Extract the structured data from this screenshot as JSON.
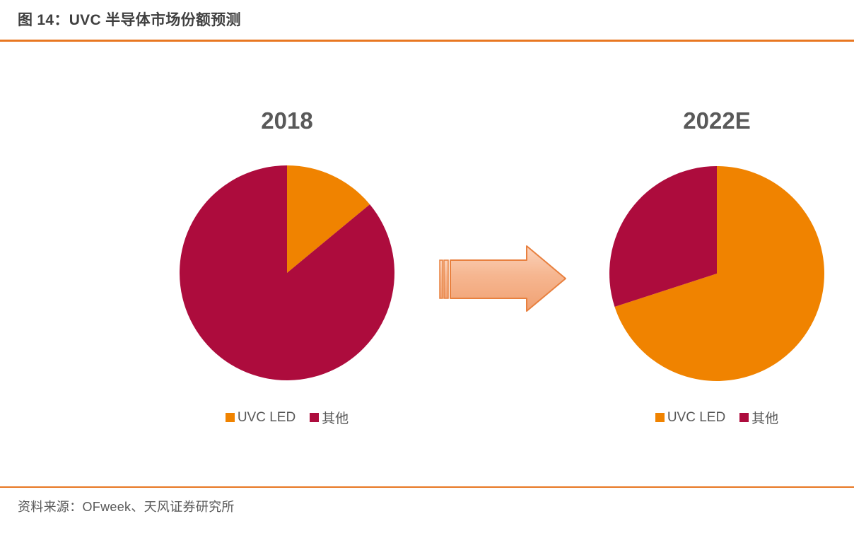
{
  "figure": {
    "title": "图 14：UVC 半导体市场份额预测",
    "source": "资料来源：OFweek、天风证券研究所"
  },
  "legend": {
    "items": [
      {
        "label": "UVC LED",
        "color": "#F08300"
      },
      {
        "label": "其他",
        "color": "#AD0C3D"
      }
    ]
  },
  "arrow": {
    "shape": "striped-right-arrow",
    "fill_light": "#FBD3BC",
    "fill_mid": "#F6B690",
    "fill_dark": "#F0A173",
    "border": "#E8803F"
  },
  "colors": {
    "accent_rule": "#E87722",
    "title_text": "#3F3F3F",
    "chart_text": "#595959",
    "uvc_led": "#F08300",
    "other": "#AD0C3D"
  },
  "chart_data": [
    {
      "type": "pie",
      "title": "2018",
      "labels": [
        "UVC LED",
        "其他"
      ],
      "values": [
        14,
        86
      ],
      "colors": [
        "#F08300",
        "#AD0C3D"
      ],
      "units": "percent",
      "start_angle_deg": 0,
      "direction": "clockwise",
      "legend_position": "bottom"
    },
    {
      "type": "pie",
      "title": "2022E",
      "labels": [
        "UVC LED",
        "其他"
      ],
      "values": [
        70,
        30
      ],
      "colors": [
        "#F08300",
        "#AD0C3D"
      ],
      "units": "percent",
      "start_angle_deg": 0,
      "direction": "clockwise",
      "legend_position": "bottom"
    }
  ]
}
